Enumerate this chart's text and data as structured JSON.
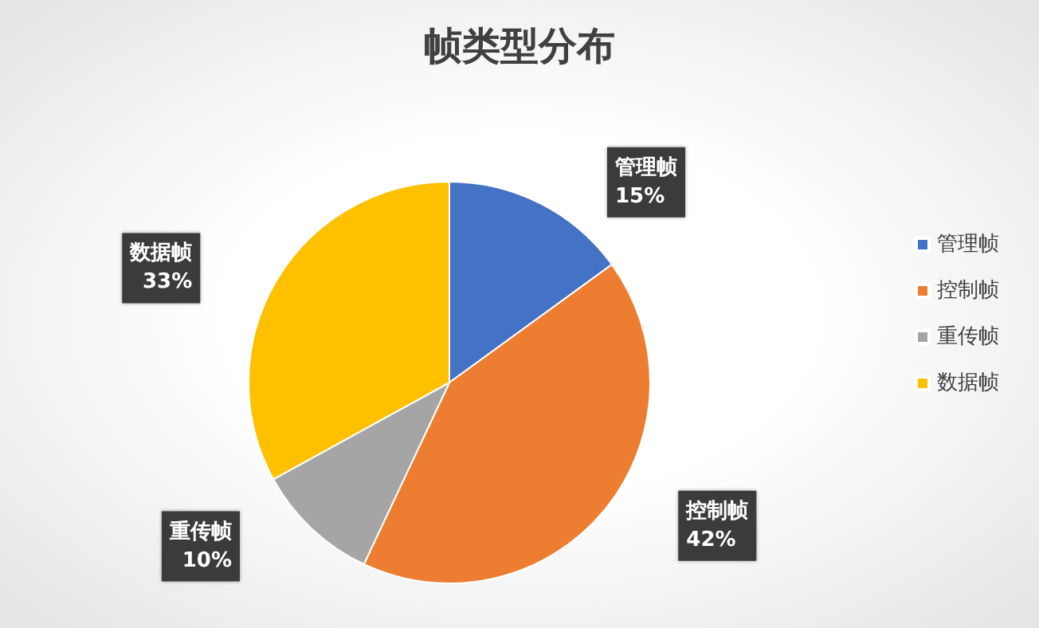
{
  "chart_data": {
    "type": "pie",
    "title": "帧类型分布",
    "categories": [
      "管理帧",
      "控制帧",
      "重传帧",
      "数据帧"
    ],
    "values": [
      15,
      42,
      10,
      33
    ],
    "colors": [
      "#4472c4",
      "#ed7d31",
      "#a5a5a5",
      "#ffc000"
    ],
    "value_labels": [
      "15%",
      "42%",
      "10%",
      "33%"
    ],
    "legend": "right"
  }
}
